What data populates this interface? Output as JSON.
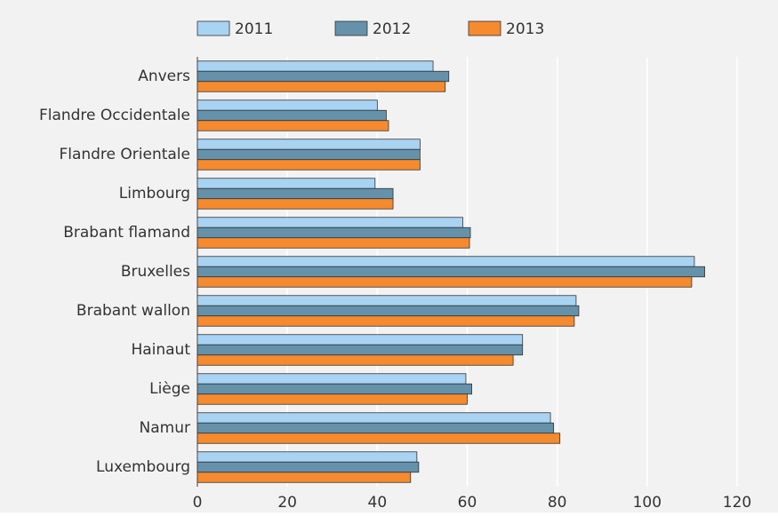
{
  "chart_data": {
    "type": "hbar",
    "categories": [
      "Anvers",
      "Flandre Occidentale",
      "Flandre Orientale",
      "Limbourg",
      "Brabant flamand",
      "Bruxelles",
      "Brabant wallon",
      "Hainaut",
      "Liège",
      "Namur",
      "Luxembourg"
    ],
    "series": [
      {
        "name": "2011",
        "color": "#a9d3f3",
        "values": [
          52.4,
          40,
          49.5,
          39.5,
          59,
          110.5,
          84.2,
          72.3,
          59.7,
          78.5,
          48.8
        ]
      },
      {
        "name": "2012",
        "color": "#6591ab",
        "values": [
          55.9,
          42,
          49.5,
          43.5,
          60.7,
          112.8,
          84.8,
          72.3,
          61,
          79.2,
          49.2
        ]
      },
      {
        "name": "2013",
        "color": "#f58a2e",
        "values": [
          55.1,
          42.5,
          49.5,
          43.5,
          60.5,
          109.9,
          83.8,
          70.2,
          60,
          80.6,
          47.4
        ]
      }
    ],
    "xlim": [
      0,
      120
    ],
    "xticks": [
      0,
      20,
      40,
      60,
      80,
      100,
      120
    ],
    "grid": true,
    "legend": "top"
  }
}
